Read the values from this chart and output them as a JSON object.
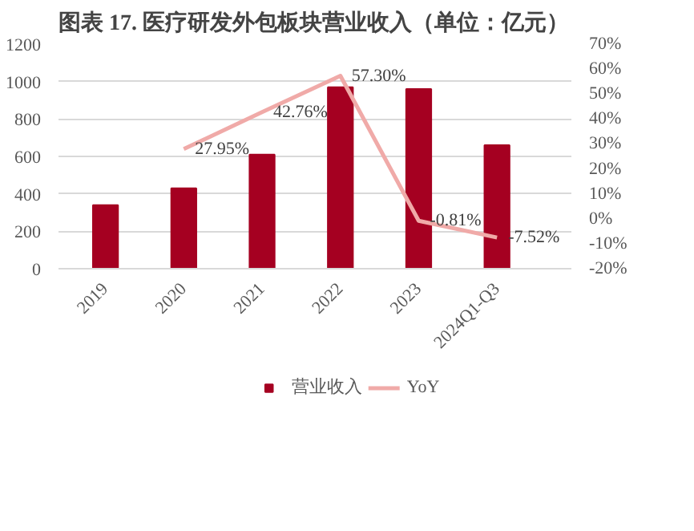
{
  "chart_data": {
    "type": "bar",
    "title": "图表 17. 医疗研发外包板块营业收入（单位：亿元）",
    "categories": [
      "2019",
      "2020",
      "2021",
      "2022",
      "2023",
      "2024Q1-Q3"
    ],
    "series": [
      {
        "name": "营业收入",
        "color": "#a50021",
        "values": [
          340,
          430,
          610,
          970,
          960,
          660
        ]
      },
      {
        "name": "YoY",
        "type": "line",
        "axis": "y2",
        "color": "#f0aaa8",
        "values": [
          null,
          27.95,
          42.76,
          57.3,
          -0.81,
          -7.52
        ],
        "value_labels": [
          null,
          "27.95%",
          "42.76%",
          "57.30%",
          "-0.81%",
          "-7.52%"
        ]
      }
    ],
    "ylim": [
      0,
      1200
    ],
    "yticks": [
      0,
      200,
      400,
      600,
      800,
      1000,
      1200
    ],
    "y2lim": [
      -20,
      70
    ],
    "y2ticks": [
      {
        "value": -20,
        "label": "-20%"
      },
      {
        "value": -10,
        "label": "-10%"
      },
      {
        "value": 0,
        "label": "0%"
      },
      {
        "value": 10,
        "label": "10%"
      },
      {
        "value": 20,
        "label": "20%"
      },
      {
        "value": 30,
        "label": "30%"
      },
      {
        "value": 40,
        "label": "40%"
      },
      {
        "value": 50,
        "label": "50%"
      },
      {
        "value": 60,
        "label": "60%"
      },
      {
        "value": 70,
        "label": "70%"
      }
    ],
    "grid": "y",
    "legend": "bottom"
  }
}
